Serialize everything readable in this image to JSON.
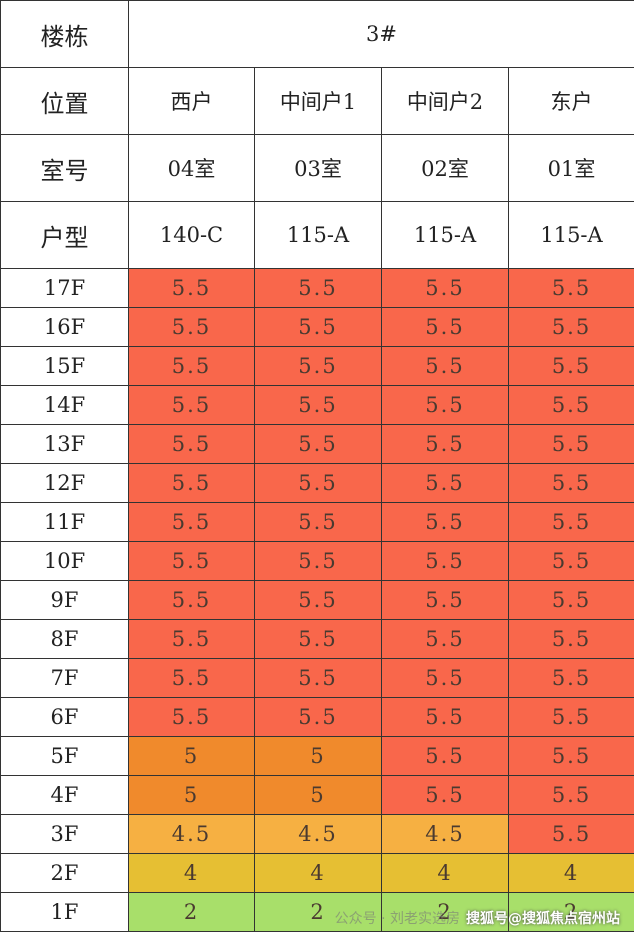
{
  "table": {
    "header": {
      "building_label": "楼栋",
      "building": "3#",
      "position_label": "位置",
      "positions": [
        "西户",
        "中间户1",
        "中间户2",
        "东户"
      ],
      "room_label": "室号",
      "rooms": [
        "04室",
        "03室",
        "02室",
        "01室"
      ],
      "type_label": "户型",
      "types": [
        "140-C",
        "115-A",
        "115-A",
        "115-A"
      ]
    },
    "rows": [
      {
        "floor": "17F",
        "values": [
          5.5,
          5.5,
          5.5,
          5.5
        ],
        "colors": [
          "#f9674b",
          "#f9674b",
          "#f9674b",
          "#f9674b"
        ]
      },
      {
        "floor": "16F",
        "values": [
          5.5,
          5.5,
          5.5,
          5.5
        ],
        "colors": [
          "#f9674b",
          "#f9674b",
          "#f9674b",
          "#f9674b"
        ]
      },
      {
        "floor": "15F",
        "values": [
          5.5,
          5.5,
          5.5,
          5.5
        ],
        "colors": [
          "#f9674b",
          "#f9674b",
          "#f9674b",
          "#f9674b"
        ]
      },
      {
        "floor": "14F",
        "values": [
          5.5,
          5.5,
          5.5,
          5.5
        ],
        "colors": [
          "#f9674b",
          "#f9674b",
          "#f9674b",
          "#f9674b"
        ]
      },
      {
        "floor": "13F",
        "values": [
          5.5,
          5.5,
          5.5,
          5.5
        ],
        "colors": [
          "#f9674b",
          "#f9674b",
          "#f9674b",
          "#f9674b"
        ]
      },
      {
        "floor": "12F",
        "values": [
          5.5,
          5.5,
          5.5,
          5.5
        ],
        "colors": [
          "#f9674b",
          "#f9674b",
          "#f9674b",
          "#f9674b"
        ]
      },
      {
        "floor": "11F",
        "values": [
          5.5,
          5.5,
          5.5,
          5.5
        ],
        "colors": [
          "#f9674b",
          "#f9674b",
          "#f9674b",
          "#f9674b"
        ]
      },
      {
        "floor": "10F",
        "values": [
          5.5,
          5.5,
          5.5,
          5.5
        ],
        "colors": [
          "#f9674b",
          "#f9674b",
          "#f9674b",
          "#f9674b"
        ]
      },
      {
        "floor": "9F",
        "values": [
          5.5,
          5.5,
          5.5,
          5.5
        ],
        "colors": [
          "#f9674b",
          "#f9674b",
          "#f9674b",
          "#f9674b"
        ]
      },
      {
        "floor": "8F",
        "values": [
          5.5,
          5.5,
          5.5,
          5.5
        ],
        "colors": [
          "#f9674b",
          "#f9674b",
          "#f9674b",
          "#f9674b"
        ]
      },
      {
        "floor": "7F",
        "values": [
          5.5,
          5.5,
          5.5,
          5.5
        ],
        "colors": [
          "#f9674b",
          "#f9674b",
          "#f9674b",
          "#f9674b"
        ]
      },
      {
        "floor": "6F",
        "values": [
          5.5,
          5.5,
          5.5,
          5.5
        ],
        "colors": [
          "#f9674b",
          "#f9674b",
          "#f9674b",
          "#f9674b"
        ]
      },
      {
        "floor": "5F",
        "values": [
          5,
          5,
          5.5,
          5.5
        ],
        "colors": [
          "#f08a2c",
          "#f08a2c",
          "#f9674b",
          "#f9674b"
        ]
      },
      {
        "floor": "4F",
        "values": [
          5,
          5,
          5.5,
          5.5
        ],
        "colors": [
          "#f08a2c",
          "#f08a2c",
          "#f9674b",
          "#f9674b"
        ]
      },
      {
        "floor": "3F",
        "values": [
          4.5,
          4.5,
          4.5,
          5.5
        ],
        "colors": [
          "#f6b042",
          "#f6b042",
          "#f6b042",
          "#f9674b"
        ]
      },
      {
        "floor": "2F",
        "values": [
          4,
          4,
          4,
          4
        ],
        "colors": [
          "#e6bf33",
          "#e6bf33",
          "#e6bf33",
          "#e6bf33"
        ]
      },
      {
        "floor": "1F",
        "values": [
          2,
          2,
          2,
          2
        ],
        "colors": [
          "#a8df6a",
          "#a8df6a",
          "#a8df6a",
          "#a8df6a"
        ]
      }
    ]
  },
  "watermark": {
    "account": "公众号 · 刘老实选房",
    "source": "搜狐号@搜狐焦点宿州站"
  }
}
